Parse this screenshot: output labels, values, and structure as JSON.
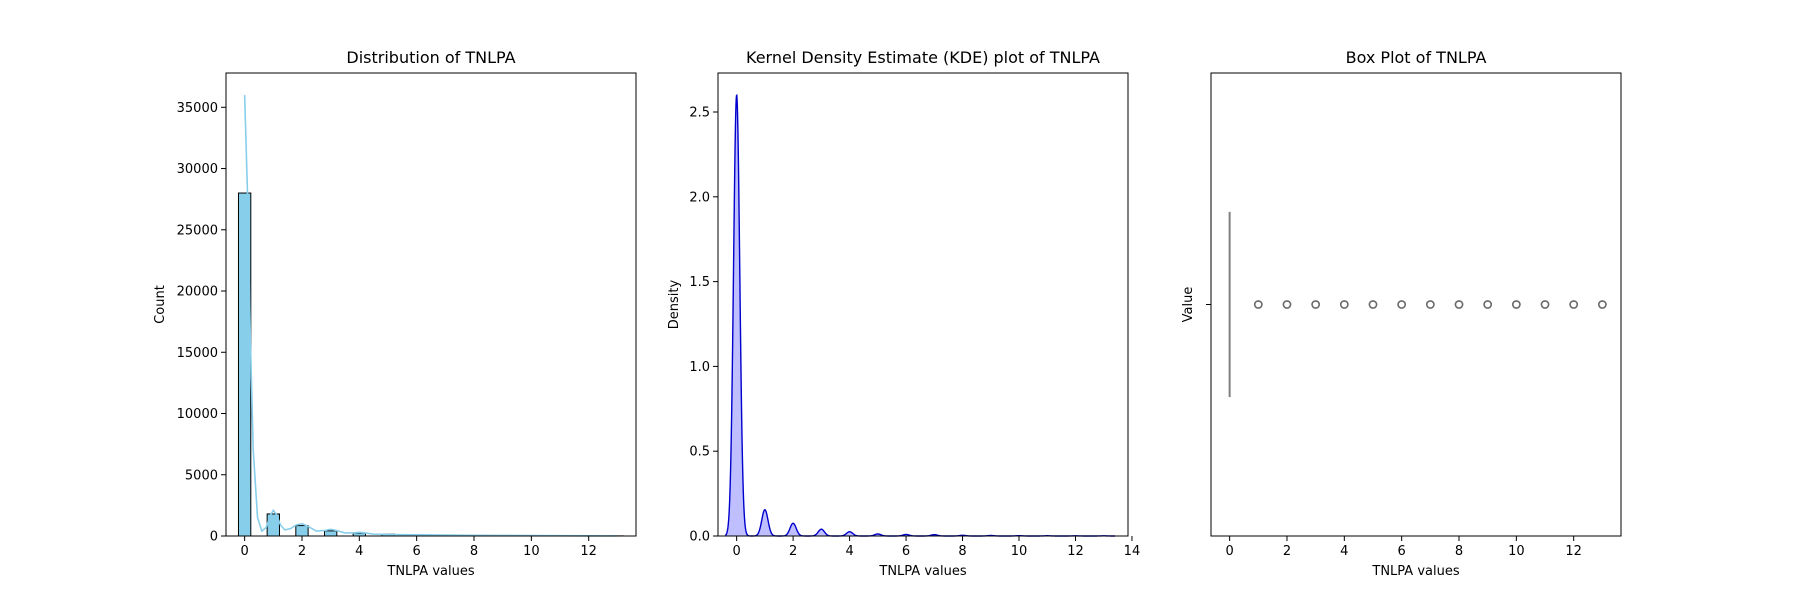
{
  "chart_data": [
    {
      "type": "bar",
      "title": "Distribution of TNLPA",
      "xlabel": "TNLPA values",
      "ylabel": "Count",
      "xlim": [
        -0.65,
        13.65
      ],
      "ylim": [
        0,
        37800
      ],
      "xticks": [
        0,
        2,
        4,
        6,
        8,
        10,
        12
      ],
      "yticks": [
        0,
        5000,
        10000,
        15000,
        20000,
        25000,
        30000,
        35000
      ],
      "bin_width": 0.43,
      "bins": [
        {
          "x": 0,
          "count": 28000
        },
        {
          "x": 1,
          "count": 1800
        },
        {
          "x": 2,
          "count": 850
        },
        {
          "x": 3,
          "count": 420
        },
        {
          "x": 4,
          "count": 230
        },
        {
          "x": 5,
          "count": 150
        },
        {
          "x": 6,
          "count": 110
        },
        {
          "x": 7,
          "count": 80
        },
        {
          "x": 8,
          "count": 55
        },
        {
          "x": 9,
          "count": 40
        },
        {
          "x": 10,
          "count": 30
        },
        {
          "x": 11,
          "count": 20
        },
        {
          "x": 12,
          "count": 15
        },
        {
          "x": 13,
          "count": 10
        }
      ],
      "kde": {
        "x": [
          0,
          0.1,
          0.2,
          0.3,
          0.45,
          0.6,
          0.75,
          0.9,
          1.0,
          1.1,
          1.25,
          1.4,
          1.6,
          1.8,
          2.0,
          2.2,
          2.5,
          2.8,
          3.0,
          3.2,
          3.5,
          3.8,
          4.0,
          4.2,
          4.5,
          5.0,
          5.5,
          6.0,
          6.5,
          7.0,
          8.0,
          9.0,
          10.0,
          11.0,
          12.0,
          13.0
        ],
        "y": [
          36000,
          28000,
          16000,
          7000,
          1500,
          400,
          700,
          1700,
          2100,
          1800,
          900,
          500,
          600,
          900,
          1000,
          800,
          400,
          450,
          550,
          450,
          250,
          250,
          300,
          250,
          150,
          130,
          110,
          100,
          90,
          80,
          60,
          45,
          35,
          25,
          15,
          10
        ]
      },
      "colors": {
        "bar": "#87ceeb",
        "edge": "#000000",
        "kde": "#87ceeb"
      }
    },
    {
      "type": "area",
      "title": "Kernel Density Estimate (KDE) plot of TNLPA",
      "xlabel": "TNLPA values",
      "ylabel": "Density",
      "xlim": [
        -0.66,
        13.86
      ],
      "ylim": [
        0,
        2.73
      ],
      "xticks": [
        0,
        2,
        4,
        6,
        8,
        10,
        12,
        14
      ],
      "yticks": [
        0.0,
        0.5,
        1.0,
        1.5,
        2.0,
        2.5
      ],
      "peaks": [
        {
          "center": 0,
          "height": 2.6,
          "width": 0.11
        },
        {
          "center": 1,
          "height": 0.155,
          "width": 0.11
        },
        {
          "center": 2,
          "height": 0.075,
          "width": 0.11
        },
        {
          "center": 3,
          "height": 0.04,
          "width": 0.11
        },
        {
          "center": 4,
          "height": 0.025,
          "width": 0.11
        },
        {
          "center": 5,
          "height": 0.012,
          "width": 0.11
        },
        {
          "center": 6,
          "height": 0.009,
          "width": 0.11
        },
        {
          "center": 7,
          "height": 0.008,
          "width": 0.11
        },
        {
          "center": 8,
          "height": 0.004,
          "width": 0.11
        },
        {
          "center": 9,
          "height": 0.003,
          "width": 0.11
        },
        {
          "center": 10,
          "height": 0.002,
          "width": 0.11
        },
        {
          "center": 11,
          "height": 0.0015,
          "width": 0.11
        },
        {
          "center": 12,
          "height": 0.001,
          "width": 0.11
        },
        {
          "center": 13,
          "height": 0.001,
          "width": 0.11
        }
      ],
      "colors": {
        "line": "#0000cd",
        "fill": "#0000ff",
        "fill_opacity": 0.25
      }
    },
    {
      "type": "scatter",
      "subtype": "box",
      "title": "Box Plot of TNLPA",
      "xlabel": "TNLPA values",
      "ylabel": "Value",
      "xlim": [
        -0.65,
        13.65
      ],
      "xticks": [
        0,
        2,
        4,
        6,
        8,
        10,
        12
      ],
      "box": {
        "q1": 0,
        "median": 0,
        "q3": 0,
        "whisker_low": 0,
        "whisker_high": 0
      },
      "outliers": [
        1,
        2,
        3,
        4,
        5,
        6,
        7,
        8,
        9,
        10,
        11,
        12,
        13
      ],
      "colors": {
        "box": "#808080",
        "outlier_edge": "#696969"
      }
    }
  ]
}
